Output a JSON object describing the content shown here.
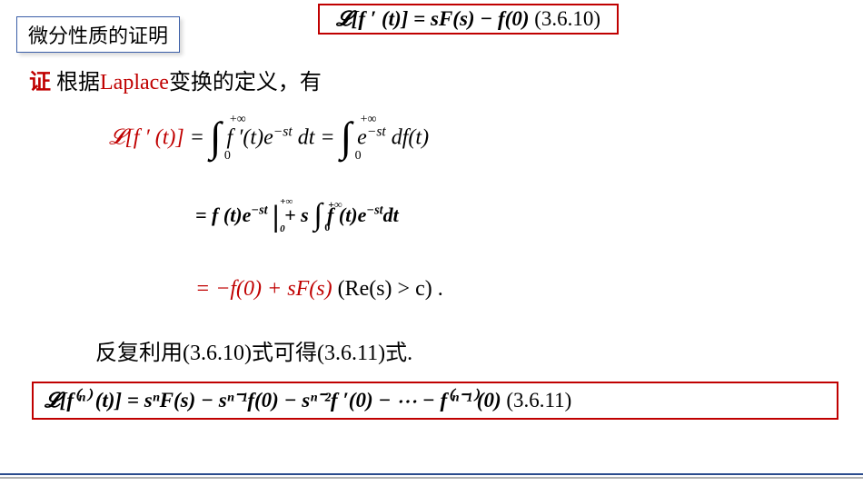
{
  "title_box": "微分性质的证明",
  "eq_top": {
    "lhs": "𝓛[f ′ (t)]",
    "rhs": "= sF(s) − f(0)",
    "ref": "(3.6.10)"
  },
  "proof_line": {
    "proof_word": "证",
    "text_before": "  根据",
    "laplace_word": "Laplace",
    "text_after": "变换的定义，有"
  },
  "derivation": {
    "row_a_lhs": "𝓛[f ′ (t)]",
    "row_a_eq1": " = ",
    "row_a_int1_upper": "+∞",
    "row_a_int1_lower": "0",
    "row_a_int1_body": " f ′(t)e",
    "row_a_int1_exp": "−st",
    "row_a_int1_tail": " dt   = ",
    "row_a_int2_upper": "+∞",
    "row_a_int2_lower": "0",
    "row_a_int2_body": " e",
    "row_a_int2_exp": "−st",
    "row_a_int2_tail": " df(t)",
    "row_b_eq": "= f (t)e",
    "row_b_exp": "−st",
    "row_b_eval_up": "+∞",
    "row_b_eval_lo": "0",
    "row_b_plus": " + s",
    "row_b_int_upper": "+∞",
    "row_b_int_lower": "0",
    "row_b_int_body": " f (t)e",
    "row_b_int_exp": "−st",
    "row_b_int_tail": "dt",
    "row_c_main": "= −f(0) + sF(s)",
    "row_c_cond": " (Re(s) > c) ."
  },
  "conclude_line": "反复利用(3.6.10)式可得(3.6.11)式.",
  "eq_bottom": {
    "body": "𝓛[f⁽ⁿ⁾ (t)] = sⁿF(s) − sⁿ⁻¹f(0) − sⁿ⁻²f ′(0) − ⋯ − f⁽ⁿ⁻¹⁾(0)",
    "ref": "(3.6.11)"
  },
  "colors": {
    "red": "#c00000",
    "blue_border": "#3b5fa8",
    "footer_blue": "#2a4b8d",
    "footer_grey": "#b0b0b0"
  }
}
